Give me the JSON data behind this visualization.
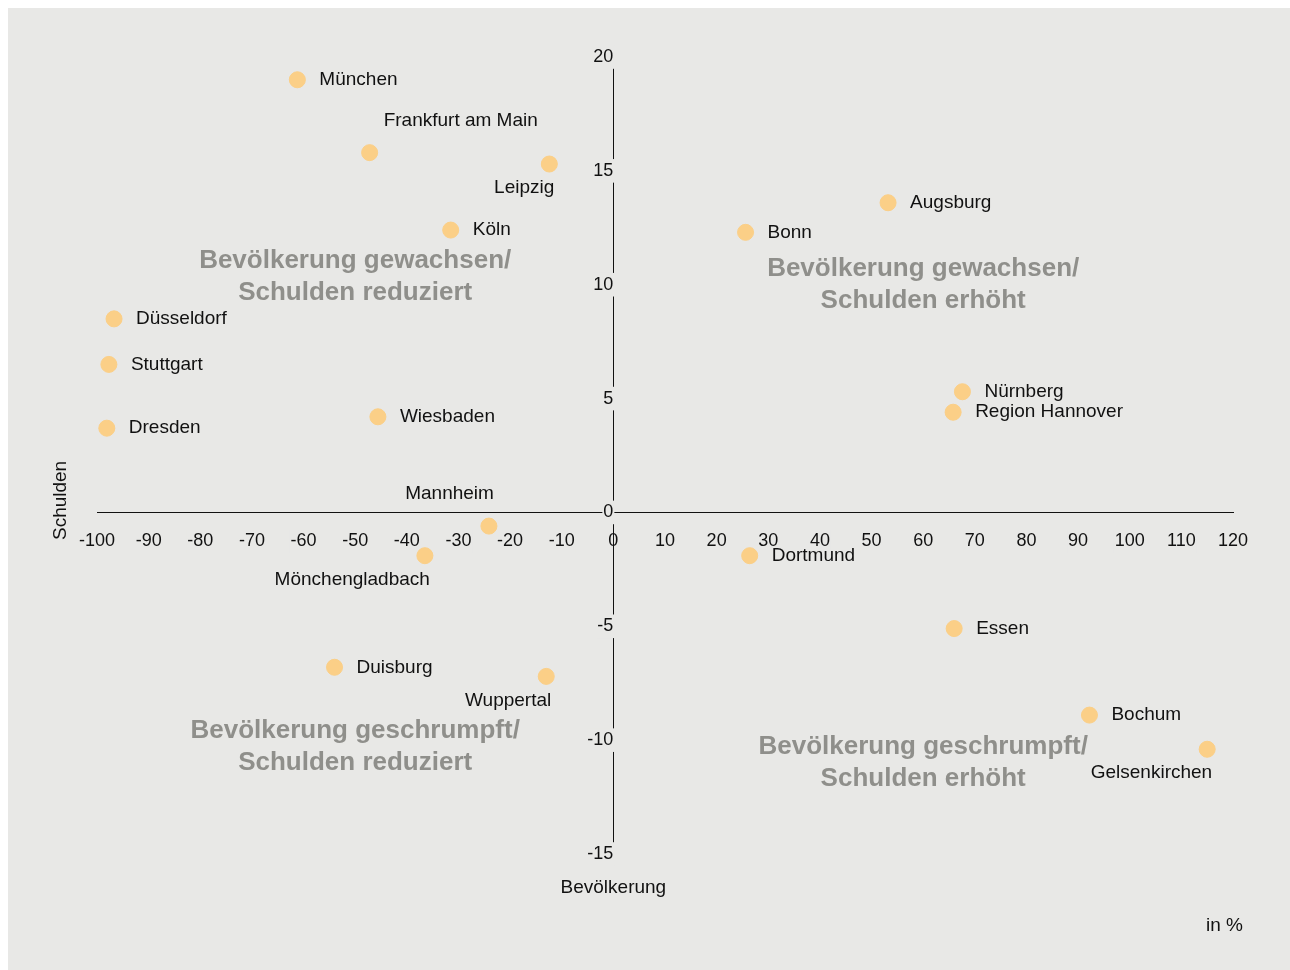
{
  "chart_data": {
    "type": "scatter",
    "xlabel": "Bevölkerung",
    "ylabel": "Schulden",
    "series": [
      {
        "color": "#fbcf87",
        "x": [
          -61.2,
          -47.2,
          -12.4,
          -31.5,
          -96.7,
          -97.7,
          -98.1,
          -45.6,
          -24.1,
          -36.5,
          -54,
          -13,
          25.6,
          53.2,
          67.6,
          65.8,
          26.4,
          66,
          92.2,
          115
        ],
        "values": [
          19,
          15.8,
          15.3,
          12.4,
          8.5,
          6.5,
          3.7,
          4.2,
          -0.6,
          -1.9,
          -6.8,
          -7.2,
          12.3,
          13.6,
          5.3,
          4.4,
          -1.9,
          -5.1,
          -8.9,
          -10.4
        ]
      }
    ],
    "xlim": [
      -100,
      120
    ],
    "xticks": [
      -100,
      -90,
      -80,
      -70,
      -60,
      -50,
      -40,
      -30,
      -20,
      -10,
      0,
      10,
      20,
      30,
      40,
      50,
      60,
      70,
      80,
      90,
      100,
      110,
      120
    ],
    "ylim": [
      -15,
      20
    ],
    "yticks": [
      -15,
      -10,
      -5,
      0,
      5,
      10,
      15,
      20
    ],
    "grid": false,
    "legend": false,
    "marker": "circle",
    "annotations": [
      "Bevölkerung gewachsen/ Schulden reduziert",
      "Bevölkerung gewachsen/ Schulden erhöht",
      "Bevölkerung geschrumpft/ Schulden reduziert",
      "Bevölkerung geschrumpft/ Schulden erhöht",
      "in %",
      {
        "text": "München",
        "x": -61.2,
        "y": 19
      },
      {
        "text": "Frankfurt am Main",
        "x": -47.2,
        "y": 15.8
      },
      {
        "text": "Leipzig",
        "x": -12.4,
        "y": 15.3
      },
      {
        "text": "Köln",
        "x": -31.5,
        "y": 12.4
      },
      {
        "text": "Düsseldorf",
        "x": -96.7,
        "y": 8.5
      },
      {
        "text": "Stuttgart",
        "x": -97.7,
        "y": 6.5
      },
      {
        "text": "Dresden",
        "x": -98.1,
        "y": 3.7
      },
      {
        "text": "Wiesbaden",
        "x": -45.6,
        "y": 4.2
      },
      {
        "text": "Mannheim",
        "x": -24.1,
        "y": -0.6
      },
      {
        "text": "Mönchengladbach",
        "x": -36.5,
        "y": -1.9
      },
      {
        "text": "Duisburg",
        "x": -54,
        "y": -6.8
      },
      {
        "text": "Wuppertal",
        "x": -13,
        "y": -7.2
      },
      {
        "text": "Bonn",
        "x": 25.6,
        "y": 12.3
      },
      {
        "text": "Augsburg",
        "x": 53.2,
        "y": 13.6
      },
      {
        "text": "Nürnberg",
        "x": 67.6,
        "y": 5.3
      },
      {
        "text": "Region Hannover",
        "x": 65.8,
        "y": 4.4
      },
      {
        "text": "Dortmund",
        "x": 26.4,
        "y": -1.9
      },
      {
        "text": "Essen",
        "x": 66,
        "y": -5.1
      },
      {
        "text": "Bochum",
        "x": 92.2,
        "y": -8.9
      },
      {
        "text": "Gelsenkirchen",
        "x": 115,
        "y": -10.4
      }
    ]
  }
}
